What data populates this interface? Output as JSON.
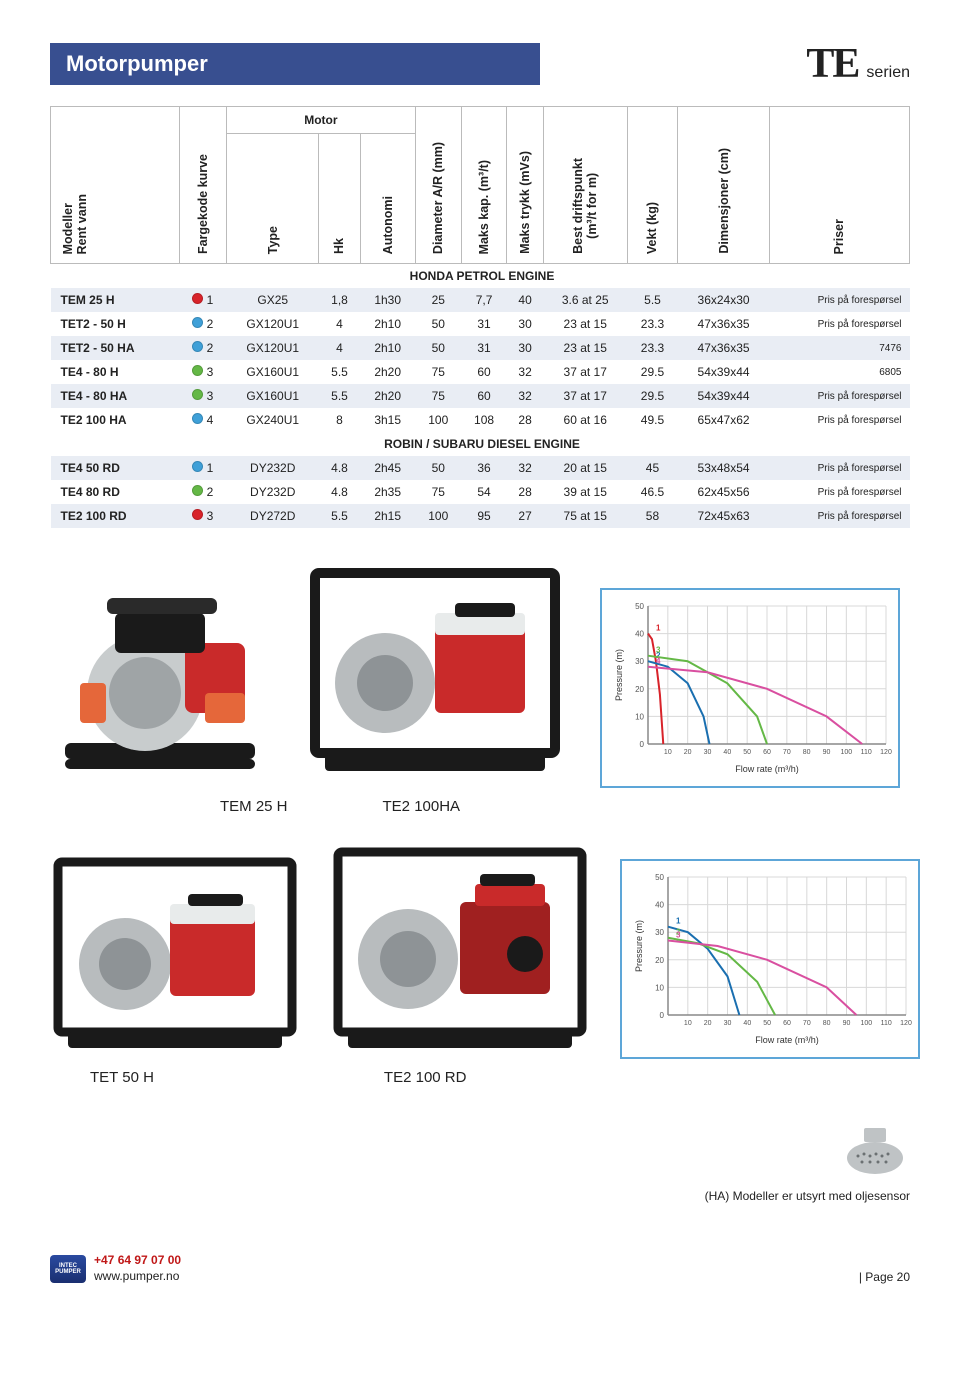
{
  "header": {
    "title": "Motorpumper",
    "series_code": "TE",
    "series_label": "serien"
  },
  "table": {
    "headers": {
      "model": "Modeller\nRent vann",
      "curve": "Fargekode kurve",
      "motor_group": "Motor",
      "type": "Type",
      "hk": "Hk",
      "autonomi": "Autonomi",
      "diameter": "Diameter A/R (mm)",
      "maks_kap": "Maks kap. (m³/t)",
      "maks_trykk": "Maks trykk (mVs)",
      "best_drift": "Best driftspunkt\n(m³/t for m)",
      "vekt": "Vekt (kg)",
      "dim": "Dimensjoner (cm)",
      "priser": "Priser"
    },
    "sections": [
      {
        "title": "HONDA PETROL ENGINE",
        "rows": [
          {
            "shade": true,
            "model": "TEM 25 H",
            "color": "#d8232a",
            "curve": "1",
            "type": "GX25",
            "hk": "1,8",
            "auto": "1h30",
            "dia": "25",
            "kap": "7,7",
            "trykk": "40",
            "drift": "3.6 at 25",
            "vekt": "5.5",
            "dim": "36x24x30",
            "price": "Pris på forespørsel"
          },
          {
            "shade": false,
            "model": "TET2 - 50 H",
            "color": "#3fa0d8",
            "curve": "2",
            "type": "GX120U1",
            "hk": "4",
            "auto": "2h10",
            "dia": "50",
            "kap": "31",
            "trykk": "30",
            "drift": "23 at 15",
            "vekt": "23.3",
            "dim": "47x36x35",
            "price": "Pris på forespørsel"
          },
          {
            "shade": true,
            "model": "TET2 - 50 HA",
            "color": "#3fa0d8",
            "curve": "2",
            "type": "GX120U1",
            "hk": "4",
            "auto": "2h10",
            "dia": "50",
            "kap": "31",
            "trykk": "30",
            "drift": "23 at 15",
            "vekt": "23.3",
            "dim": "47x36x35",
            "price": "7476"
          },
          {
            "shade": false,
            "model": "TE4 - 80 H",
            "color": "#64b846",
            "curve": "3",
            "type": "GX160U1",
            "hk": "5.5",
            "auto": "2h20",
            "dia": "75",
            "kap": "60",
            "trykk": "32",
            "drift": "37 at 17",
            "vekt": "29.5",
            "dim": "54x39x44",
            "price": "6805"
          },
          {
            "shade": true,
            "model": "TE4 - 80 HA",
            "color": "#64b846",
            "curve": "3",
            "type": "GX160U1",
            "hk": "5.5",
            "auto": "2h20",
            "dia": "75",
            "kap": "60",
            "trykk": "32",
            "drift": "37 at 17",
            "vekt": "29.5",
            "dim": "54x39x44",
            "price": "Pris på forespørsel"
          },
          {
            "shade": false,
            "model": "TE2 100 HA",
            "color": "#3fa0d8",
            "curve": "4",
            "type": "GX240U1",
            "hk": "8",
            "auto": "3h15",
            "dia": "100",
            "kap": "108",
            "trykk": "28",
            "drift": "60 at 16",
            "vekt": "49.5",
            "dim": "65x47x62",
            "price": "Pris på forespørsel"
          }
        ]
      },
      {
        "title": "ROBIN / SUBARU DIESEL ENGINE",
        "rows": [
          {
            "shade": true,
            "model": "TE4 50 RD",
            "color": "#3fa0d8",
            "curve": "1",
            "type": "DY232D",
            "hk": "4.8",
            "auto": "2h45",
            "dia": "50",
            "kap": "36",
            "trykk": "32",
            "drift": "20 at 15",
            "vekt": "45",
            "dim": "53x48x54",
            "price": "Pris på forespørsel"
          },
          {
            "shade": false,
            "model": "TE4 80 RD",
            "color": "#64b846",
            "curve": "2",
            "type": "DY232D",
            "hk": "4.8",
            "auto": "2h35",
            "dia": "75",
            "kap": "54",
            "trykk": "28",
            "drift": "39 at 15",
            "vekt": "46.5",
            "dim": "62x45x56",
            "price": "Pris på forespørsel"
          },
          {
            "shade": true,
            "model": "TE2 100 RD",
            "color": "#d8232a",
            "curve": "3",
            "type": "DY272D",
            "hk": "5.5",
            "auto": "2h15",
            "dia": "100",
            "kap": "95",
            "trykk": "27",
            "drift": "75 at 15",
            "vekt": "58",
            "dim": "72x45x63",
            "price": "Pris på forespørsel"
          }
        ]
      }
    ]
  },
  "captions": {
    "top1": "TEM 25 H",
    "top2": "TE2 100HA",
    "bot1": "TET 50 H",
    "bot2": "TE2 100 RD"
  },
  "charts": {
    "top": {
      "ylabel": "Pressure (m)",
      "xlabel": "Flow rate (m³/h)",
      "yticks": [
        0,
        10,
        20,
        30,
        40,
        50
      ],
      "xticks": [
        10,
        20,
        30,
        40,
        50,
        60,
        70,
        80,
        90,
        100,
        110,
        120
      ],
      "axis_color": "#888",
      "grid_color": "#d8d8d8",
      "series": [
        {
          "color": "#d8232a",
          "label": "1",
          "points": [
            [
              0,
              40
            ],
            [
              2,
              38
            ],
            [
              4,
              30
            ],
            [
              6,
              18
            ],
            [
              7.7,
              0
            ]
          ]
        },
        {
          "color": "#1a6fb0",
          "label": "2",
          "points": [
            [
              0,
              30
            ],
            [
              10,
              28
            ],
            [
              20,
              22
            ],
            [
              28,
              10
            ],
            [
              31,
              0
            ]
          ]
        },
        {
          "color": "#64b846",
          "label": "3",
          "points": [
            [
              0,
              32
            ],
            [
              20,
              30
            ],
            [
              40,
              22
            ],
            [
              55,
              10
            ],
            [
              60,
              0
            ]
          ]
        },
        {
          "color": "#d94fa0",
          "label": "4",
          "points": [
            [
              0,
              28
            ],
            [
              30,
              26
            ],
            [
              60,
              20
            ],
            [
              90,
              10
            ],
            [
              108,
              0
            ]
          ]
        }
      ]
    },
    "bottom": {
      "ylabel": "Pressure (m)",
      "xlabel": "Flow rate (m³/h)",
      "yticks": [
        0,
        10,
        20,
        30,
        40,
        50
      ],
      "xticks": [
        10,
        20,
        30,
        40,
        50,
        60,
        70,
        80,
        90,
        100,
        110,
        120
      ],
      "axis_color": "#888",
      "grid_color": "#d8d8d8",
      "series": [
        {
          "color": "#1a6fb0",
          "label": "1",
          "points": [
            [
              0,
              32
            ],
            [
              10,
              30
            ],
            [
              20,
              24
            ],
            [
              30,
              14
            ],
            [
              36,
              0
            ]
          ]
        },
        {
          "color": "#64b846",
          "label": "2",
          "points": [
            [
              0,
              28
            ],
            [
              15,
              26
            ],
            [
              30,
              22
            ],
            [
              45,
              12
            ],
            [
              54,
              0
            ]
          ]
        },
        {
          "color": "#d94fa0",
          "label": "3",
          "points": [
            [
              0,
              27
            ],
            [
              25,
              25
            ],
            [
              50,
              20
            ],
            [
              80,
              10
            ],
            [
              95,
              0
            ]
          ]
        }
      ]
    }
  },
  "accessory_note": "(HA) Modeller er utsyrt med oljesensor",
  "footer": {
    "phone": "+47 64 97 07 00",
    "url": "www.pumper.no",
    "page": "| Page 20",
    "logo_top": "INTEC",
    "logo_bot": "PUMPER"
  }
}
